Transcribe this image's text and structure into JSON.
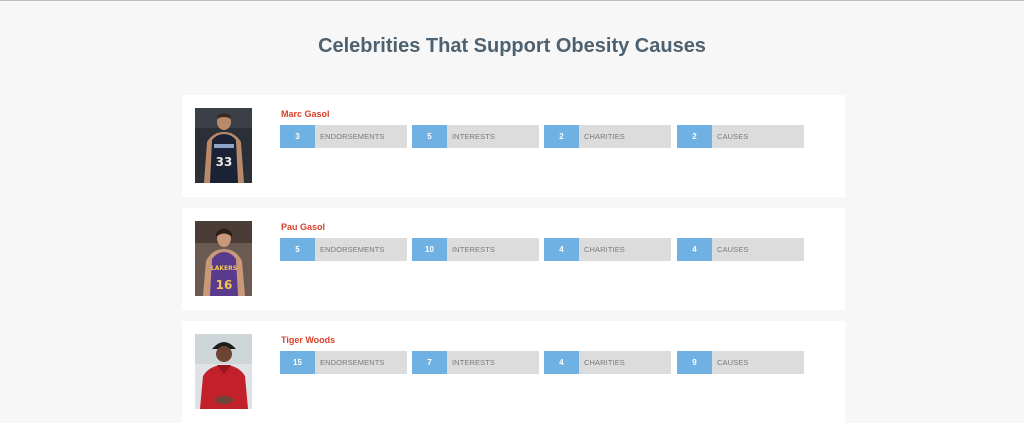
{
  "header": {
    "title": "Celebrities That Support Obesity Causes"
  },
  "celebrities": [
    {
      "name": "Marc Gasol",
      "photo_icon": "basketball-player-grizzlies-photo",
      "stats": [
        {
          "value": "3",
          "label": "ENDORSEMENTS"
        },
        {
          "value": "5",
          "label": "INTERESTS"
        },
        {
          "value": "2",
          "label": "CHARITIES"
        },
        {
          "value": "2",
          "label": "CAUSES"
        }
      ]
    },
    {
      "name": "Pau Gasol",
      "photo_icon": "basketball-player-lakers-photo",
      "stats": [
        {
          "value": "5",
          "label": "ENDORSEMENTS"
        },
        {
          "value": "10",
          "label": "INTERESTS"
        },
        {
          "value": "4",
          "label": "CHARITIES"
        },
        {
          "value": "4",
          "label": "CAUSES"
        }
      ]
    },
    {
      "name": "Tiger Woods",
      "photo_icon": "golfer-red-shirt-photo",
      "stats": [
        {
          "value": "15",
          "label": "ENDORSEMENTS"
        },
        {
          "value": "7",
          "label": "INTERESTS"
        },
        {
          "value": "4",
          "label": "CHARITIES"
        },
        {
          "value": "9",
          "label": "CAUSES"
        }
      ]
    }
  ],
  "colors": {
    "accent": "#6fb1e3",
    "name": "#d9412b",
    "title": "#4e6170"
  }
}
